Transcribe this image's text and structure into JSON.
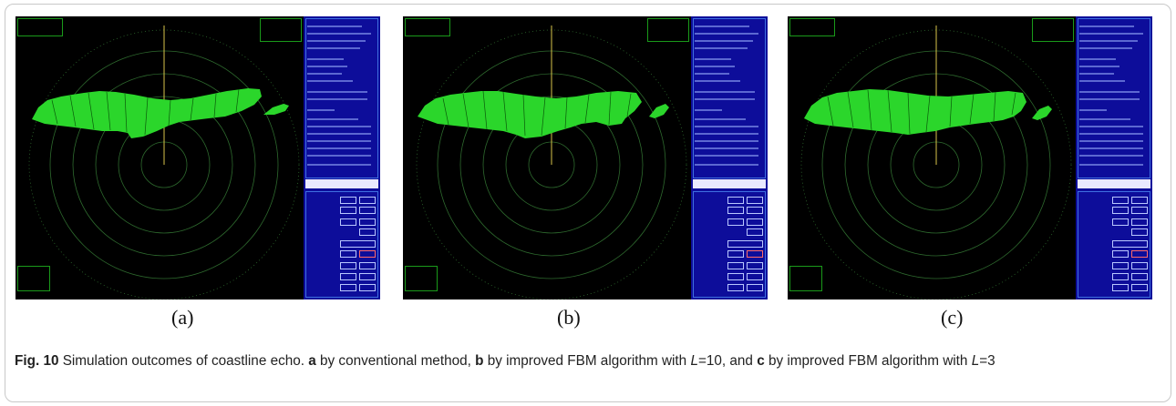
{
  "panels": [
    {
      "label": "(a)"
    },
    {
      "label": "(b)"
    },
    {
      "label": "(c)"
    }
  ],
  "caption": {
    "fig": "Fig. 10",
    "t1": " Simulation outcomes of coastline echo. ",
    "a": "a",
    "t2": " by conventional method, ",
    "b": "b",
    "t3": " by improved FBM algorithm with ",
    "L1": "L",
    "t4": "=10, and ",
    "c": "c",
    "t5": " by improved FBM algorithm with ",
    "L2": "L",
    "t6": "=3"
  },
  "colors": {
    "radar_bg": "#000000",
    "ring": "#2e6a2e",
    "echo": "#2bd62b",
    "heading_line": "#d8c44a",
    "side_panel": "#0d0d9a"
  }
}
